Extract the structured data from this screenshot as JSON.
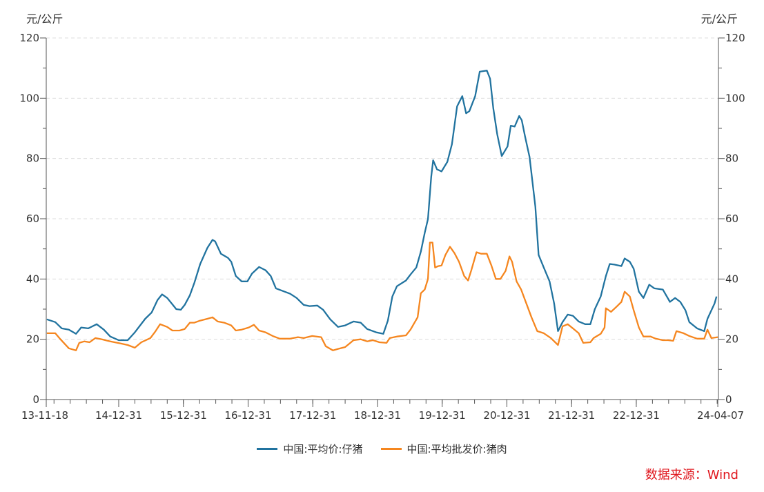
{
  "chart_data": {
    "type": "line",
    "title": "",
    "ylabel_left": "元/公斤",
    "ylabel_right": "元/公斤",
    "xlabel": "",
    "ylim": [
      0,
      120
    ],
    "yticks": [
      0,
      20,
      40,
      60,
      80,
      100,
      120
    ],
    "xlim": [
      2013.88,
      2024.27
    ],
    "xticks": [
      {
        "label": "13-11-18",
        "x": 2013.88
      },
      {
        "label": "14-12-31",
        "x": 2015.0
      },
      {
        "label": "15-12-31",
        "x": 2016.0
      },
      {
        "label": "16-12-31",
        "x": 2017.0
      },
      {
        "label": "17-12-31",
        "x": 2018.0
      },
      {
        "label": "18-12-31",
        "x": 2019.0
      },
      {
        "label": "19-12-31",
        "x": 2020.0
      },
      {
        "label": "20-12-31",
        "x": 2021.0
      },
      {
        "label": "21-12-31",
        "x": 2022.0
      },
      {
        "label": "22-12-31",
        "x": 2023.0
      },
      {
        "label": "24-04-07",
        "x": 2024.26
      }
    ],
    "grid": "horizontal-dashed",
    "legend_position": "bottom",
    "series": [
      {
        "name": "中国:平均价:仔猪",
        "color": "#21739f",
        "points": [
          [
            2013.89,
            26.6
          ],
          [
            2014.02,
            25.7
          ],
          [
            2014.12,
            23.6
          ],
          [
            2014.23,
            23.2
          ],
          [
            2014.34,
            21.8
          ],
          [
            2014.42,
            23.9
          ],
          [
            2014.53,
            23.6
          ],
          [
            2014.66,
            25
          ],
          [
            2014.77,
            23.2
          ],
          [
            2014.87,
            20.9
          ],
          [
            2015.0,
            19.7
          ],
          [
            2015.14,
            19.7
          ],
          [
            2015.25,
            22.3
          ],
          [
            2015.41,
            26.8
          ],
          [
            2015.51,
            28.9
          ],
          [
            2015.6,
            33
          ],
          [
            2015.67,
            34.9
          ],
          [
            2015.75,
            33.7
          ],
          [
            2015.89,
            30
          ],
          [
            2015.96,
            29.8
          ],
          [
            2016.02,
            31.4
          ],
          [
            2016.1,
            34.6
          ],
          [
            2016.17,
            38.8
          ],
          [
            2016.26,
            45
          ],
          [
            2016.37,
            50.3
          ],
          [
            2016.45,
            53
          ],
          [
            2016.49,
            52.5
          ],
          [
            2016.58,
            48.4
          ],
          [
            2016.69,
            47
          ],
          [
            2016.74,
            45.7
          ],
          [
            2016.81,
            41
          ],
          [
            2016.9,
            39.2
          ],
          [
            2016.99,
            39.2
          ],
          [
            2017.06,
            41.8
          ],
          [
            2017.17,
            44
          ],
          [
            2017.27,
            42.9
          ],
          [
            2017.35,
            41
          ],
          [
            2017.43,
            36.9
          ],
          [
            2017.54,
            36
          ],
          [
            2017.65,
            35.1
          ],
          [
            2017.75,
            33.7
          ],
          [
            2017.86,
            31.4
          ],
          [
            2017.95,
            31
          ],
          [
            2018.07,
            31.2
          ],
          [
            2018.16,
            29.8
          ],
          [
            2018.27,
            26.6
          ],
          [
            2018.39,
            24.1
          ],
          [
            2018.5,
            24.6
          ],
          [
            2018.63,
            25.9
          ],
          [
            2018.74,
            25.5
          ],
          [
            2018.84,
            23.4
          ],
          [
            2018.98,
            22.3
          ],
          [
            2019.09,
            21.8
          ],
          [
            2019.16,
            26.2
          ],
          [
            2019.23,
            34.2
          ],
          [
            2019.3,
            37.6
          ],
          [
            2019.44,
            39.5
          ],
          [
            2019.51,
            41.5
          ],
          [
            2019.6,
            43.8
          ],
          [
            2019.67,
            49.1
          ],
          [
            2019.73,
            55.3
          ],
          [
            2019.78,
            59.9
          ],
          [
            2019.83,
            73.9
          ],
          [
            2019.86,
            79.4
          ],
          [
            2019.92,
            76.4
          ],
          [
            2019.99,
            75.7
          ],
          [
            2020.08,
            78.9
          ],
          [
            2020.15,
            84.7
          ],
          [
            2020.23,
            97.3
          ],
          [
            2020.31,
            100.7
          ],
          [
            2020.37,
            95
          ],
          [
            2020.42,
            95.7
          ],
          [
            2020.51,
            100.7
          ],
          [
            2020.58,
            108.8
          ],
          [
            2020.69,
            109.2
          ],
          [
            2020.74,
            106.5
          ],
          [
            2020.79,
            96.6
          ],
          [
            2020.85,
            88.1
          ],
          [
            2020.92,
            80.8
          ],
          [
            2021.01,
            84
          ],
          [
            2021.06,
            90.9
          ],
          [
            2021.12,
            90.6
          ],
          [
            2021.19,
            94.1
          ],
          [
            2021.23,
            92.7
          ],
          [
            2021.28,
            87.4
          ],
          [
            2021.35,
            80.5
          ],
          [
            2021.44,
            64
          ],
          [
            2021.49,
            48
          ],
          [
            2021.57,
            43.8
          ],
          [
            2021.66,
            39.2
          ],
          [
            2021.73,
            31.9
          ],
          [
            2021.79,
            22.7
          ],
          [
            2021.86,
            25.7
          ],
          [
            2021.94,
            28.2
          ],
          [
            2022.02,
            27.8
          ],
          [
            2022.11,
            25.9
          ],
          [
            2022.21,
            25
          ],
          [
            2022.29,
            25
          ],
          [
            2022.36,
            30
          ],
          [
            2022.45,
            34.2
          ],
          [
            2022.53,
            41
          ],
          [
            2022.59,
            45
          ],
          [
            2022.66,
            44.8
          ],
          [
            2022.77,
            44.3
          ],
          [
            2022.82,
            46.8
          ],
          [
            2022.9,
            45.7
          ],
          [
            2022.96,
            43.4
          ],
          [
            2023.04,
            35.8
          ],
          [
            2023.11,
            33.7
          ],
          [
            2023.2,
            38.1
          ],
          [
            2023.28,
            36.9
          ],
          [
            2023.41,
            36.5
          ],
          [
            2023.52,
            32.4
          ],
          [
            2023.6,
            33.7
          ],
          [
            2023.68,
            32.4
          ],
          [
            2023.76,
            29.6
          ],
          [
            2023.82,
            25.7
          ],
          [
            2023.94,
            23.6
          ],
          [
            2024.05,
            22.7
          ],
          [
            2024.1,
            26.8
          ],
          [
            2024.21,
            31.9
          ],
          [
            2024.24,
            34.2
          ]
        ]
      },
      {
        "name": "中国:平均批发价:猪肉",
        "color": "#f5861f",
        "points": [
          [
            2013.89,
            22
          ],
          [
            2014.02,
            22
          ],
          [
            2014.1,
            20
          ],
          [
            2014.23,
            17
          ],
          [
            2014.34,
            16.3
          ],
          [
            2014.39,
            18.8
          ],
          [
            2014.47,
            19.3
          ],
          [
            2014.55,
            19
          ],
          [
            2014.64,
            20.4
          ],
          [
            2014.74,
            20
          ],
          [
            2014.87,
            19.3
          ],
          [
            2015.03,
            18.6
          ],
          [
            2015.14,
            18.1
          ],
          [
            2015.25,
            17.2
          ],
          [
            2015.35,
            19
          ],
          [
            2015.49,
            20.4
          ],
          [
            2015.57,
            22.7
          ],
          [
            2015.64,
            25
          ],
          [
            2015.75,
            24.1
          ],
          [
            2015.83,
            22.9
          ],
          [
            2015.94,
            22.9
          ],
          [
            2016.02,
            23.4
          ],
          [
            2016.1,
            25.5
          ],
          [
            2016.17,
            25.5
          ],
          [
            2016.26,
            26.2
          ],
          [
            2016.37,
            26.8
          ],
          [
            2016.45,
            27.3
          ],
          [
            2016.53,
            25.9
          ],
          [
            2016.63,
            25.5
          ],
          [
            2016.74,
            24.6
          ],
          [
            2016.81,
            22.9
          ],
          [
            2016.9,
            23.2
          ],
          [
            2017.01,
            23.9
          ],
          [
            2017.09,
            24.8
          ],
          [
            2017.17,
            22.9
          ],
          [
            2017.27,
            22.3
          ],
          [
            2017.38,
            21.1
          ],
          [
            2017.49,
            20.2
          ],
          [
            2017.65,
            20.2
          ],
          [
            2017.77,
            20.7
          ],
          [
            2017.86,
            20.4
          ],
          [
            2017.99,
            21.1
          ],
          [
            2018.13,
            20.7
          ],
          [
            2018.2,
            17.7
          ],
          [
            2018.31,
            16.3
          ],
          [
            2018.39,
            16.8
          ],
          [
            2018.5,
            17.4
          ],
          [
            2018.63,
            19.7
          ],
          [
            2018.74,
            20
          ],
          [
            2018.84,
            19.3
          ],
          [
            2018.93,
            19.7
          ],
          [
            2019.03,
            19
          ],
          [
            2019.14,
            18.8
          ],
          [
            2019.19,
            20.4
          ],
          [
            2019.3,
            20.9
          ],
          [
            2019.44,
            21.3
          ],
          [
            2019.51,
            23.2
          ],
          [
            2019.62,
            27.3
          ],
          [
            2019.67,
            35.3
          ],
          [
            2019.73,
            36.5
          ],
          [
            2019.78,
            40
          ],
          [
            2019.81,
            52.1
          ],
          [
            2019.85,
            52.1
          ],
          [
            2019.89,
            43.8
          ],
          [
            2019.94,
            44.3
          ],
          [
            2019.99,
            44.5
          ],
          [
            2020.05,
            48
          ],
          [
            2020.12,
            50.7
          ],
          [
            2020.19,
            48.6
          ],
          [
            2020.26,
            45.7
          ],
          [
            2020.34,
            41
          ],
          [
            2020.4,
            39.5
          ],
          [
            2020.45,
            42.9
          ],
          [
            2020.53,
            48.9
          ],
          [
            2020.6,
            48.4
          ],
          [
            2020.69,
            48.4
          ],
          [
            2020.76,
            44.5
          ],
          [
            2020.83,
            40
          ],
          [
            2020.9,
            40
          ],
          [
            2020.98,
            42.7
          ],
          [
            2021.04,
            47.5
          ],
          [
            2021.08,
            45.7
          ],
          [
            2021.15,
            39.2
          ],
          [
            2021.22,
            36.5
          ],
          [
            2021.3,
            31.9
          ],
          [
            2021.38,
            27.3
          ],
          [
            2021.47,
            22.7
          ],
          [
            2021.57,
            22
          ],
          [
            2021.68,
            20.4
          ],
          [
            2021.79,
            18.1
          ],
          [
            2021.86,
            24.3
          ],
          [
            2021.94,
            25
          ],
          [
            2022.02,
            23.6
          ],
          [
            2022.11,
            22
          ],
          [
            2022.18,
            18.8
          ],
          [
            2022.29,
            19
          ],
          [
            2022.34,
            20.4
          ],
          [
            2022.45,
            21.8
          ],
          [
            2022.51,
            23.9
          ],
          [
            2022.53,
            30.3
          ],
          [
            2022.61,
            29.1
          ],
          [
            2022.69,
            30.7
          ],
          [
            2022.77,
            32.4
          ],
          [
            2022.82,
            35.8
          ],
          [
            2022.9,
            34.2
          ],
          [
            2022.96,
            29.6
          ],
          [
            2023.04,
            23.9
          ],
          [
            2023.11,
            20.9
          ],
          [
            2023.22,
            20.9
          ],
          [
            2023.3,
            20.2
          ],
          [
            2023.41,
            19.7
          ],
          [
            2023.49,
            19.7
          ],
          [
            2023.57,
            19.5
          ],
          [
            2023.62,
            22.7
          ],
          [
            2023.73,
            22
          ],
          [
            2023.82,
            21.1
          ],
          [
            2023.94,
            20.2
          ],
          [
            2024.05,
            20.2
          ],
          [
            2024.1,
            23.2
          ],
          [
            2024.16,
            20.4
          ],
          [
            2024.26,
            20.7
          ]
        ]
      }
    ]
  },
  "source": "数据来源：Wind"
}
